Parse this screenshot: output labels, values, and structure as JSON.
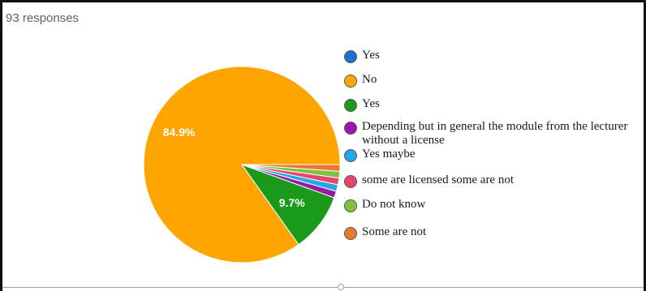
{
  "header": {
    "responses_label": "93 responses"
  },
  "chart_data": {
    "type": "pie",
    "title": "",
    "categories": [
      "Yes",
      "No",
      "Yes",
      "Depending but in general the module from the lecturer without a license",
      "Yes maybe",
      "some are licensed some are not",
      "Do not know",
      "Some are not"
    ],
    "values": [
      0,
      84.9,
      9.7,
      1.1,
      1.1,
      1.1,
      1.1,
      1.1
    ],
    "colors": [
      "#1a73c8",
      "#ffa500",
      "#1a9a1a",
      "#9919a6",
      "#22a8e8",
      "#e8446e",
      "#7fc242",
      "#e87a30"
    ],
    "slice_labels": [
      {
        "index": 1,
        "text": "84.9%"
      },
      {
        "index": 2,
        "text": "9.7%"
      }
    ],
    "legend_position": "right",
    "start_angle_deg": 90
  }
}
